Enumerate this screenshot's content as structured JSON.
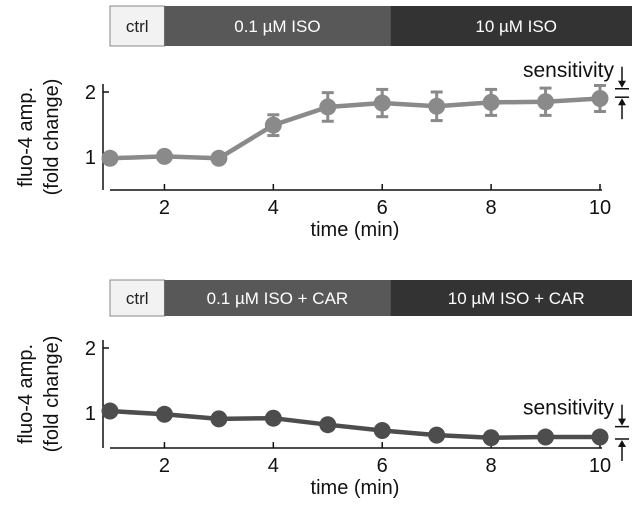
{
  "chart_data": [
    {
      "type": "line",
      "xlabel": "time (min)",
      "ylabel": [
        "fluo-4 amp.",
        "(fold change)"
      ],
      "xlim": [
        1,
        10
      ],
      "ylim": [
        0.5,
        2.3
      ],
      "xticks": [
        "2",
        "4",
        "6",
        "8",
        "10"
      ],
      "yticks": [
        "1",
        "2"
      ],
      "conditions": [
        {
          "label": "ctrl",
          "from": 1,
          "to": 2,
          "color": "#f2f2f2",
          "text_color": "#222222"
        },
        {
          "label": "0.1 µM ISO",
          "from": 2,
          "to": 6.15,
          "color": "#585858",
          "text_color": "#ffffff"
        },
        {
          "label": "10 µM  ISO",
          "from": 6.15,
          "to": 10.6,
          "color": "#333333",
          "text_color": "#ffffff"
        }
      ],
      "series": [
        {
          "color": "#8a8a8a",
          "x": [
            1,
            2,
            3,
            4,
            5,
            6,
            7,
            8,
            9,
            10
          ],
          "y": [
            0.98,
            1.01,
            0.98,
            1.49,
            1.77,
            1.83,
            1.78,
            1.84,
            1.85,
            1.9
          ],
          "err": [
            0.03,
            0.04,
            0.03,
            0.16,
            0.22,
            0.21,
            0.22,
            0.2,
            0.21,
            0.2
          ]
        }
      ],
      "annotation": {
        "text": "sensitivity",
        "y_top": 2.05,
        "y_bottom": 1.92
      }
    },
    {
      "type": "line",
      "xlabel": "time (min)",
      "ylabel": [
        "fluo-4 amp.",
        "(fold change)"
      ],
      "xlim": [
        1,
        10
      ],
      "ylim": [
        0.5,
        2.3
      ],
      "xticks": [
        "2",
        "4",
        "6",
        "8",
        "10"
      ],
      "yticks": [
        "1",
        "2"
      ],
      "conditions": [
        {
          "label": "ctrl",
          "from": 1,
          "to": 2,
          "color": "#f2f2f2",
          "text_color": "#222222"
        },
        {
          "label": "0.1 µM ISO + CAR",
          "from": 2,
          "to": 6.15,
          "color": "#585858",
          "text_color": "#ffffff"
        },
        {
          "label": "10 µM ISO + CAR",
          "from": 6.15,
          "to": 10.6,
          "color": "#333333",
          "text_color": "#ffffff"
        }
      ],
      "series": [
        {
          "color": "#4d4d4d",
          "x": [
            1,
            2,
            3,
            4,
            5,
            6,
            7,
            8,
            9,
            10
          ],
          "y": [
            1.03,
            0.98,
            0.91,
            0.92,
            0.82,
            0.73,
            0.66,
            0.62,
            0.63,
            0.63
          ],
          "err": [
            0,
            0,
            0,
            0,
            0,
            0,
            0,
            0,
            0,
            0
          ]
        }
      ],
      "annotation": {
        "text": "sensitivity",
        "y_top": 0.79,
        "y_bottom": 0.6
      }
    }
  ]
}
